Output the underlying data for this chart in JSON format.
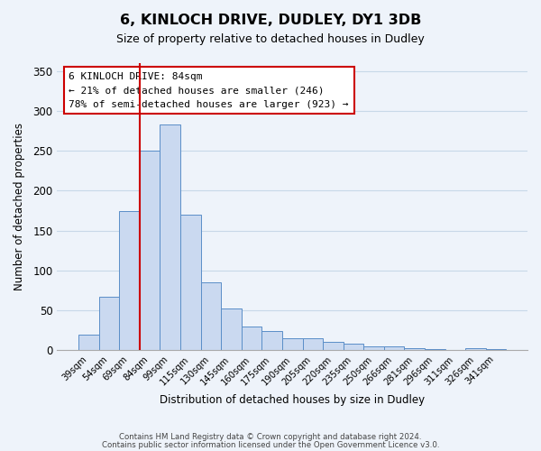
{
  "title": "6, KINLOCH DRIVE, DUDLEY, DY1 3DB",
  "subtitle": "Size of property relative to detached houses in Dudley",
  "xlabel": "Distribution of detached houses by size in Dudley",
  "ylabel": "Number of detached properties",
  "bar_labels": [
    "39sqm",
    "54sqm",
    "69sqm",
    "84sqm",
    "99sqm",
    "115sqm",
    "130sqm",
    "145sqm",
    "160sqm",
    "175sqm",
    "190sqm",
    "205sqm",
    "220sqm",
    "235sqm",
    "250sqm",
    "266sqm",
    "281sqm",
    "296sqm",
    "311sqm",
    "326sqm",
    "341sqm"
  ],
  "bar_values": [
    20,
    67,
    175,
    250,
    283,
    170,
    85,
    52,
    30,
    24,
    15,
    15,
    10,
    8,
    5,
    5,
    3,
    1,
    0,
    3,
    1
  ],
  "bar_color": "#cad9f0",
  "bar_edge_color": "#5a8ec8",
  "vline_x_index": 3,
  "vline_color": "#cc0000",
  "annotation_line1": "6 KINLOCH DRIVE: 84sqm",
  "annotation_line2": "← 21% of detached houses are smaller (246)",
  "annotation_line3": "78% of semi-detached houses are larger (923) →",
  "annotation_box_color": "#ffffff",
  "annotation_box_edge_color": "#cc0000",
  "ylim": [
    0,
    360
  ],
  "yticks": [
    0,
    50,
    100,
    150,
    200,
    250,
    300,
    350
  ],
  "grid_color": "#c8d8e8",
  "footer_line1": "Contains HM Land Registry data © Crown copyright and database right 2024.",
  "footer_line2": "Contains public sector information licensed under the Open Government Licence v3.0.",
  "bg_color": "#eef3fa"
}
